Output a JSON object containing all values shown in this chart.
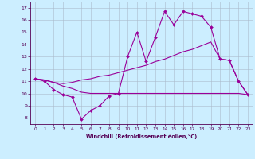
{
  "xlabel": "Windchill (Refroidissement éolien,°C)",
  "xlim": [
    -0.5,
    23.5
  ],
  "ylim": [
    7.5,
    17.5
  ],
  "yticks": [
    8,
    9,
    10,
    11,
    12,
    13,
    14,
    15,
    16,
    17
  ],
  "xticks": [
    0,
    1,
    2,
    3,
    4,
    5,
    6,
    7,
    8,
    9,
    10,
    11,
    12,
    13,
    14,
    15,
    16,
    17,
    18,
    19,
    20,
    21,
    22,
    23
  ],
  "bg_color": "#cceeff",
  "line_color": "#990099",
  "grid_color": "#aabbcc",
  "line1_x": [
    0,
    1,
    2,
    3,
    4,
    5,
    6,
    7,
    8,
    9,
    10,
    11,
    12,
    13,
    14,
    15,
    16,
    17,
    18,
    19,
    20,
    21,
    22,
    23
  ],
  "line1_y": [
    11.2,
    11.0,
    10.3,
    9.9,
    9.7,
    7.9,
    8.6,
    9.0,
    9.8,
    10.0,
    13.0,
    15.0,
    12.6,
    14.6,
    16.7,
    15.6,
    16.7,
    16.5,
    16.3,
    15.4,
    12.8,
    12.7,
    11.0,
    9.9
  ],
  "line2_x": [
    0,
    1,
    2,
    3,
    4,
    5,
    6,
    7,
    8,
    9,
    10,
    11,
    12,
    13,
    14,
    15,
    16,
    17,
    18,
    19,
    20,
    21,
    22,
    23
  ],
  "line2_y": [
    11.2,
    11.1,
    10.9,
    10.6,
    10.4,
    10.1,
    10.0,
    10.0,
    10.0,
    10.0,
    10.0,
    10.0,
    10.0,
    10.0,
    10.0,
    10.0,
    10.0,
    10.0,
    10.0,
    10.0,
    10.0,
    10.0,
    10.0,
    9.9
  ],
  "line3_x": [
    0,
    1,
    2,
    3,
    4,
    5,
    6,
    7,
    8,
    9,
    10,
    11,
    12,
    13,
    14,
    15,
    16,
    17,
    18,
    19,
    20,
    21,
    22,
    23
  ],
  "line3_y": [
    11.2,
    11.1,
    10.9,
    10.8,
    10.9,
    11.1,
    11.2,
    11.4,
    11.5,
    11.7,
    11.9,
    12.1,
    12.3,
    12.6,
    12.8,
    13.1,
    13.4,
    13.6,
    13.9,
    14.2,
    12.8,
    12.7,
    11.0,
    9.9
  ]
}
